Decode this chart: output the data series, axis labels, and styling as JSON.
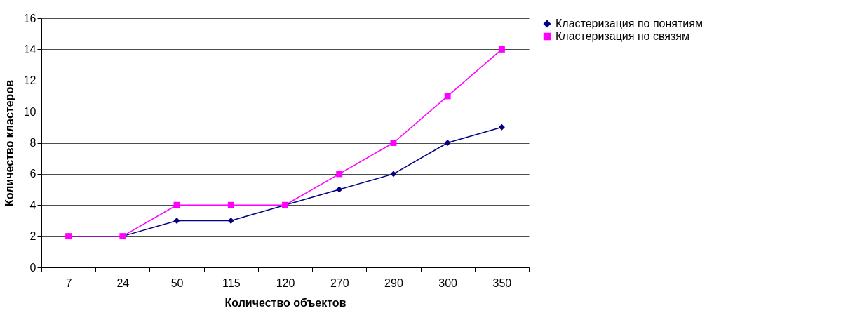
{
  "chart_data": {
    "type": "line",
    "xlabel": "Количество объектов",
    "ylabel": "Количество кластеров",
    "categories": [
      "7",
      "24",
      "50",
      "115",
      "120",
      "270",
      "290",
      "300",
      "350"
    ],
    "series": [
      {
        "name": "Кластеризация по понятиям",
        "color": "#000080",
        "marker": "diamond",
        "values": [
          2,
          2,
          3,
          3,
          4,
          5,
          6,
          8,
          9
        ]
      },
      {
        "name": "Кластеризация по связям",
        "color": "#ff00ff",
        "marker": "square",
        "values": [
          2,
          2,
          4,
          4,
          4,
          6,
          8,
          11,
          14
        ]
      }
    ],
    "ylim": [
      0,
      16
    ],
    "yticks": [
      0,
      2,
      4,
      6,
      8,
      10,
      12,
      14,
      16
    ],
    "grid": "y",
    "legend": "right",
    "line_style": "solid"
  }
}
